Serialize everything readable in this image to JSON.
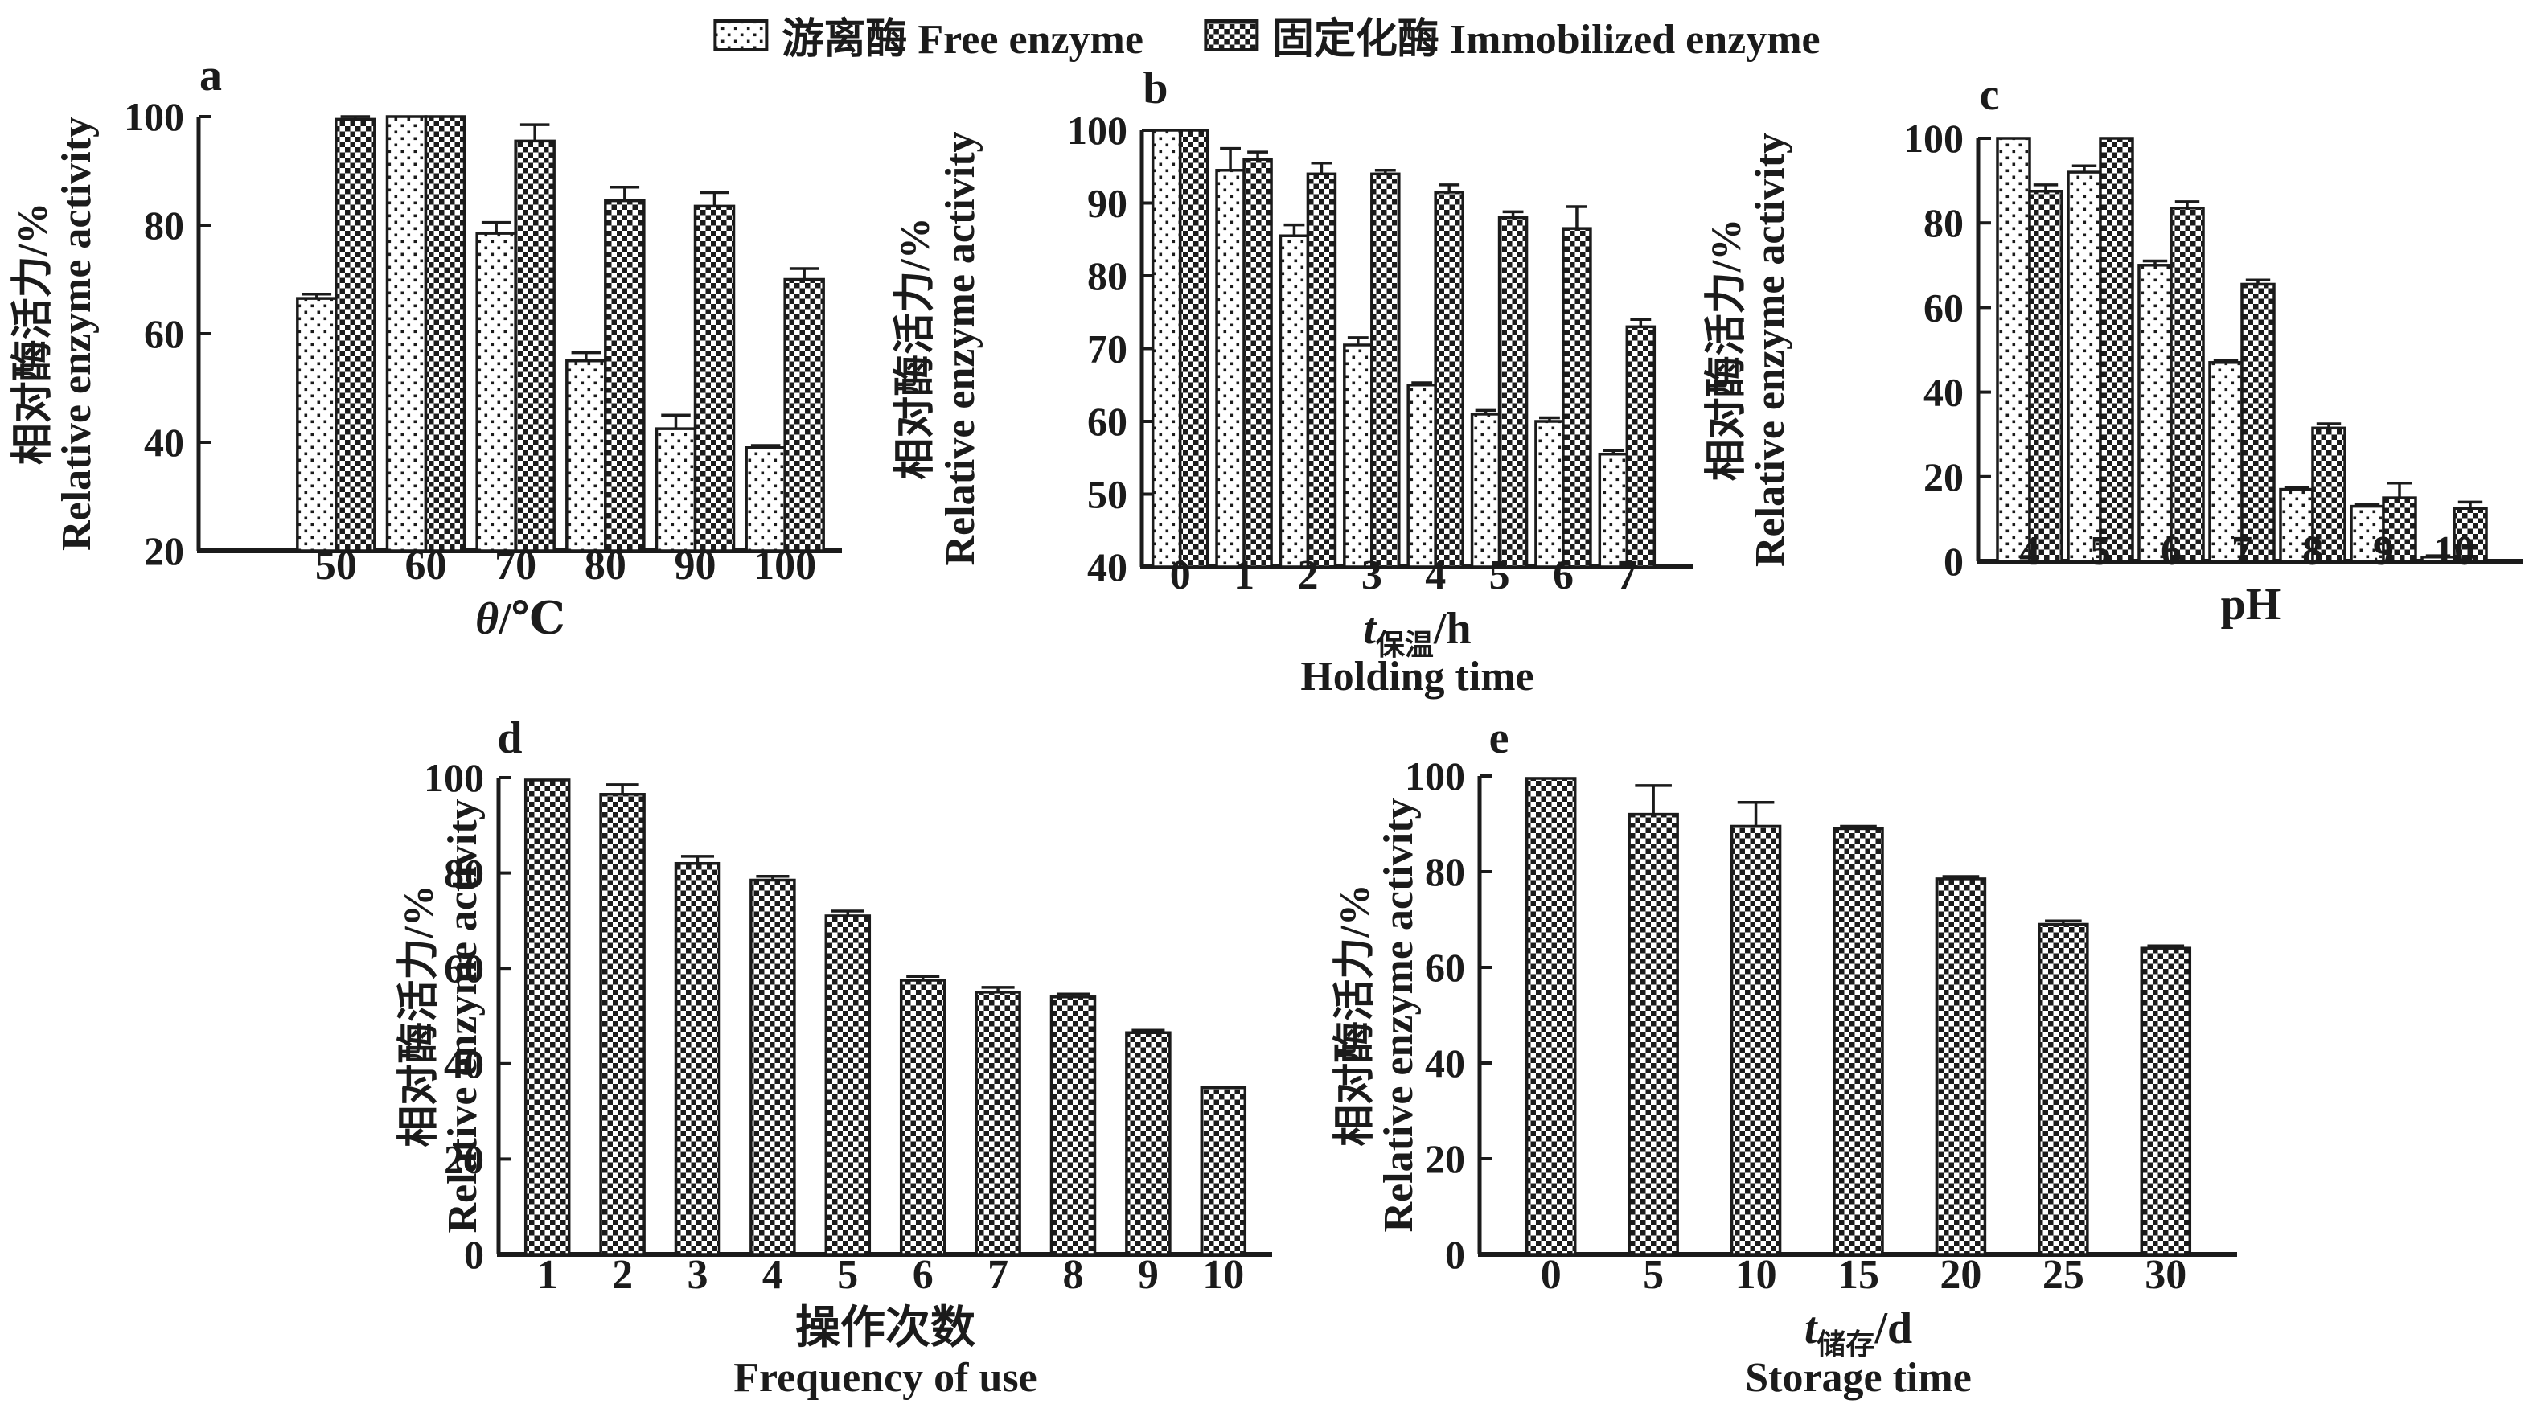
{
  "colors": {
    "ink": "#1b1b1b",
    "background": "#ffffff"
  },
  "legend": {
    "items": [
      {
        "id": "free",
        "label": "游离酶 Free enzyme",
        "pattern": "dots"
      },
      {
        "id": "immobilized",
        "label": "固定化酶 Immobilized enzyme",
        "pattern": "checker"
      }
    ]
  },
  "chart_data": [
    {
      "id": "a",
      "type": "bar",
      "panel_label": "a",
      "ylabel_cn": "相对酶活力/%",
      "ylabel_en": "Relative enzyme activity",
      "xlabel": {
        "italic": "θ",
        "sub": "",
        "rest": "/℃"
      },
      "xlabel_en": "",
      "ylim": [
        20,
        100
      ],
      "yticks": [
        20,
        40,
        60,
        80,
        100
      ],
      "categories": [
        "50",
        "60",
        "70",
        "80",
        "90",
        "100"
      ],
      "series": [
        {
          "name": "游离酶 Free enzyme",
          "pattern": "dots",
          "values": [
            66.5,
            100,
            78.5,
            55,
            42.5,
            39
          ],
          "errors": [
            0.8,
            0,
            2,
            1.5,
            2.5,
            0.4
          ]
        },
        {
          "name": "固定化酶 Immobilized enzyme",
          "pattern": "checker",
          "values": [
            99.5,
            100,
            95.5,
            84.5,
            83.5,
            70
          ],
          "errors": [
            0.5,
            0,
            3,
            2.5,
            2.5,
            2
          ]
        }
      ]
    },
    {
      "id": "b",
      "type": "bar",
      "panel_label": "b",
      "ylabel_cn": "相对酶活力/%",
      "ylabel_en": "Relative enzyme activity",
      "xlabel": {
        "italic": "t",
        "sub": "保温",
        "rest": "/h"
      },
      "xlabel_en": "Holding time",
      "ylim": [
        40,
        100
      ],
      "yticks": [
        40,
        50,
        60,
        70,
        80,
        90,
        100
      ],
      "categories": [
        "0",
        "1",
        "2",
        "3",
        "4",
        "5",
        "6",
        "7"
      ],
      "series": [
        {
          "name": "游离酶 Free enzyme",
          "pattern": "dots",
          "values": [
            100,
            94.5,
            85.5,
            70.5,
            65,
            61,
            60,
            55.5
          ],
          "errors": [
            0,
            3,
            1.5,
            1,
            0.3,
            0.5,
            0.5,
            0.5
          ]
        },
        {
          "name": "固定化酶 Immobilized enzyme",
          "pattern": "checker",
          "values": [
            100,
            96,
            94,
            94,
            91.5,
            88,
            86.5,
            73
          ],
          "errors": [
            0,
            1,
            1.5,
            0.5,
            1,
            0.8,
            3,
            1
          ]
        }
      ]
    },
    {
      "id": "c",
      "type": "bar",
      "panel_label": "c",
      "ylabel_cn": "相对酶活力/%",
      "ylabel_en": "Relative enzyme activity",
      "xlabel": {
        "italic": "",
        "sub": "",
        "rest": "pH"
      },
      "xlabel_en": "",
      "ylim": [
        0,
        100
      ],
      "yticks": [
        0,
        20,
        40,
        60,
        80,
        100
      ],
      "categories": [
        "4",
        "5",
        "6",
        "7",
        "8",
        "9",
        "10"
      ],
      "series": [
        {
          "name": "游离酶 Free enzyme",
          "pattern": "dots",
          "values": [
            100,
            92,
            70,
            47,
            17,
            13,
            1
          ],
          "errors": [
            0,
            1.5,
            1,
            0.5,
            0.5,
            0.5,
            0.3
          ]
        },
        {
          "name": "固定化酶 Immobilized enzyme",
          "pattern": "checker",
          "values": [
            87.5,
            100,
            83.5,
            65.5,
            31.5,
            15,
            12.5
          ],
          "errors": [
            1.5,
            0,
            1.5,
            1,
            1,
            3.5,
            1.5
          ]
        }
      ]
    },
    {
      "id": "d",
      "type": "bar",
      "panel_label": "d",
      "ylabel_cn": "相对酶活力/%",
      "ylabel_en": "Relative enzyme activity",
      "xlabel": {
        "italic": "",
        "sub": "",
        "rest": "操作次数"
      },
      "xlabel_en": "Frequency of use",
      "ylim": [
        0,
        100
      ],
      "yticks": [
        0,
        20,
        40,
        60,
        80,
        100
      ],
      "categories": [
        "1",
        "2",
        "3",
        "4",
        "5",
        "6",
        "7",
        "8",
        "9",
        "10"
      ],
      "series": [
        {
          "name": "固定化酶 Immobilized enzyme",
          "pattern": "checker",
          "values": [
            99.5,
            96.5,
            82,
            78.5,
            71,
            57.5,
            55,
            54,
            46.5,
            35
          ],
          "errors": [
            0,
            2,
            1.5,
            0.8,
            1,
            0.8,
            1,
            0.6,
            0.5,
            0
          ]
        }
      ]
    },
    {
      "id": "e",
      "type": "bar",
      "panel_label": "e",
      "ylabel_cn": "相对酶活力/%",
      "ylabel_en": "Relative enzyme activity",
      "xlabel": {
        "italic": "t",
        "sub": "储存",
        "rest": "/d"
      },
      "xlabel_en": "Storage time",
      "ylim": [
        0,
        100
      ],
      "yticks": [
        0,
        20,
        40,
        60,
        80,
        100
      ],
      "categories": [
        "0",
        "5",
        "10",
        "15",
        "20",
        "25",
        "30"
      ],
      "series": [
        {
          "name": "固定化酶 Immobilized enzyme",
          "pattern": "checker",
          "values": [
            99.5,
            92,
            89.5,
            89,
            78.5,
            69,
            64
          ],
          "errors": [
            0,
            6,
            5,
            0.5,
            0.5,
            0.7,
            0.5
          ]
        }
      ]
    }
  ]
}
